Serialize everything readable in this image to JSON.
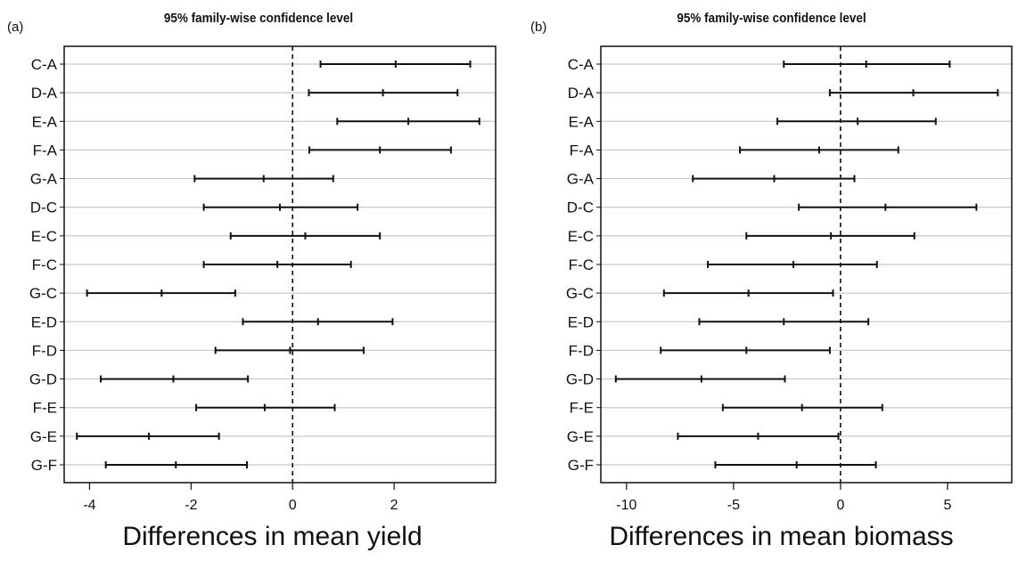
{
  "chart_data": [
    {
      "type": "interval",
      "panel_label": "(a)",
      "title": "95% family-wise confidence level",
      "xlabel": "Differences in mean yield",
      "ylabel": "",
      "xlim": [
        -4.5,
        4.0
      ],
      "xticks": [
        -4,
        -2,
        0,
        2
      ],
      "xtick_labels": [
        "-4",
        "-2",
        "0",
        "2"
      ],
      "reference_line": 0,
      "grid": "horizontal",
      "comparisons": [
        {
          "label": "C-A",
          "lwr": 0.55,
          "est": 2.03,
          "upr": 3.5
        },
        {
          "label": "D-A",
          "lwr": 0.32,
          "est": 1.78,
          "upr": 3.25
        },
        {
          "label": "E-A",
          "lwr": 0.88,
          "est": 2.28,
          "upr": 3.68
        },
        {
          "label": "F-A",
          "lwr": 0.33,
          "est": 1.72,
          "upr": 3.12
        },
        {
          "label": "G-A",
          "lwr": -1.93,
          "est": -0.57,
          "upr": 0.8
        },
        {
          "label": "D-C",
          "lwr": -1.75,
          "est": -0.25,
          "upr": 1.28
        },
        {
          "label": "E-C",
          "lwr": -1.22,
          "est": 0.25,
          "upr": 1.72
        },
        {
          "label": "F-C",
          "lwr": -1.75,
          "est": -0.3,
          "upr": 1.15
        },
        {
          "label": "G-C",
          "lwr": -4.05,
          "est": -2.58,
          "upr": -1.13
        },
        {
          "label": "E-D",
          "lwr": -0.98,
          "est": 0.5,
          "upr": 1.97
        },
        {
          "label": "F-D",
          "lwr": -1.52,
          "est": -0.05,
          "upr": 1.4
        },
        {
          "label": "G-D",
          "lwr": -3.78,
          "est": -2.35,
          "upr": -0.88
        },
        {
          "label": "F-E",
          "lwr": -1.9,
          "est": -0.55,
          "upr": 0.83
        },
        {
          "label": "G-E",
          "lwr": -4.25,
          "est": -2.83,
          "upr": -1.45
        },
        {
          "label": "G-F",
          "lwr": -3.68,
          "est": -2.3,
          "upr": -0.9
        }
      ]
    },
    {
      "type": "interval",
      "panel_label": "(b)",
      "title": "95% family-wise confidence level",
      "xlabel": "Differences in mean biomass",
      "ylabel": "",
      "xlim": [
        -11.2,
        8.0
      ],
      "xticks": [
        -10,
        -5,
        0,
        5
      ],
      "xtick_labels": [
        "-10",
        "-5",
        "0",
        "5"
      ],
      "reference_line": 0,
      "grid": "horizontal",
      "comparisons": [
        {
          "label": "C-A",
          "lwr": -2.65,
          "est": 1.2,
          "upr": 5.1
        },
        {
          "label": "D-A",
          "lwr": -0.5,
          "est": 3.4,
          "upr": 7.35
        },
        {
          "label": "E-A",
          "lwr": -2.95,
          "est": 0.8,
          "upr": 4.45
        },
        {
          "label": "F-A",
          "lwr": -4.7,
          "est": -1.0,
          "upr": 2.7
        },
        {
          "label": "G-A",
          "lwr": -6.9,
          "est": -3.1,
          "upr": 0.65
        },
        {
          "label": "D-C",
          "lwr": -1.95,
          "est": 2.1,
          "upr": 6.35
        },
        {
          "label": "E-C",
          "lwr": -4.4,
          "est": -0.45,
          "upr": 3.45
        },
        {
          "label": "F-C",
          "lwr": -6.2,
          "est": -2.2,
          "upr": 1.7
        },
        {
          "label": "G-C",
          "lwr": -8.25,
          "est": -4.3,
          "upr": -0.35
        },
        {
          "label": "E-D",
          "lwr": -6.6,
          "est": -2.65,
          "upr": 1.3
        },
        {
          "label": "F-D",
          "lwr": -8.4,
          "est": -4.4,
          "upr": -0.5
        },
        {
          "label": "G-D",
          "lwr": -10.5,
          "est": -6.5,
          "upr": -2.6
        },
        {
          "label": "F-E",
          "lwr": -5.5,
          "est": -1.8,
          "upr": 1.95
        },
        {
          "label": "G-E",
          "lwr": -7.6,
          "est": -3.85,
          "upr": -0.1
        },
        {
          "label": "G-F",
          "lwr": -5.85,
          "est": -2.05,
          "upr": 1.65
        }
      ]
    }
  ]
}
